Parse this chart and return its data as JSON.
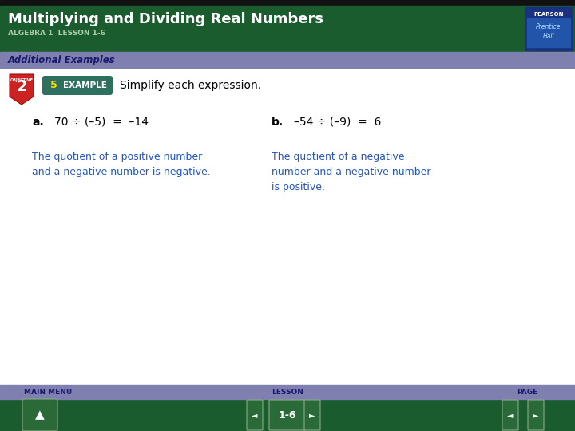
{
  "title": "Multiplying and Dividing Real Numbers",
  "subtitle": "ALGEBRA 1  LESSON 1-6",
  "section_label": "Additional Examples",
  "objective_number": "2",
  "example_number": "5",
  "example_label": "EXAMPLE",
  "instruction": "Simplify each expression.",
  "part_a_label": "a.",
  "part_a_expr": "70 ÷ (–5)  =  –14",
  "part_b_label": "b.",
  "part_b_expr": "–54 ÷ (–9)  =  6",
  "part_a_note": "The quotient of a positive number\nand a negative number is negative.",
  "part_b_note": "The quotient of a negative\nnumber and a negative number\nis positive.",
  "nav_left": "MAIN MENU",
  "nav_center": "LESSON",
  "nav_right": "PAGE",
  "nav_page": "1-6",
  "header_bg": "#1a5c2e",
  "header_dark_top": "#111111",
  "section_bg": "#8080b0",
  "footer_bg": "#1a5c2e",
  "content_bg": "#ffffff",
  "title_color": "#ffffff",
  "subtitle_color": "#aaccaa",
  "section_text_color": "#1a1a6e",
  "objective_bg": "#cc2222",
  "example_bg": "#2e7060",
  "example_pill_color": "#ffffff",
  "example_num_color": "#ffdd00",
  "instruction_color": "#000000",
  "expr_color": "#000000",
  "note_color": "#2255cc",
  "nav_text_color": "#1a1a6e",
  "footer_button_bg": "#2a6a38",
  "pearson_box_bg": "#1a3080",
  "pearson_text": "#ffffff",
  "pearson_prentice": "#aaccff",
  "pearson_hall": "#aaccff"
}
